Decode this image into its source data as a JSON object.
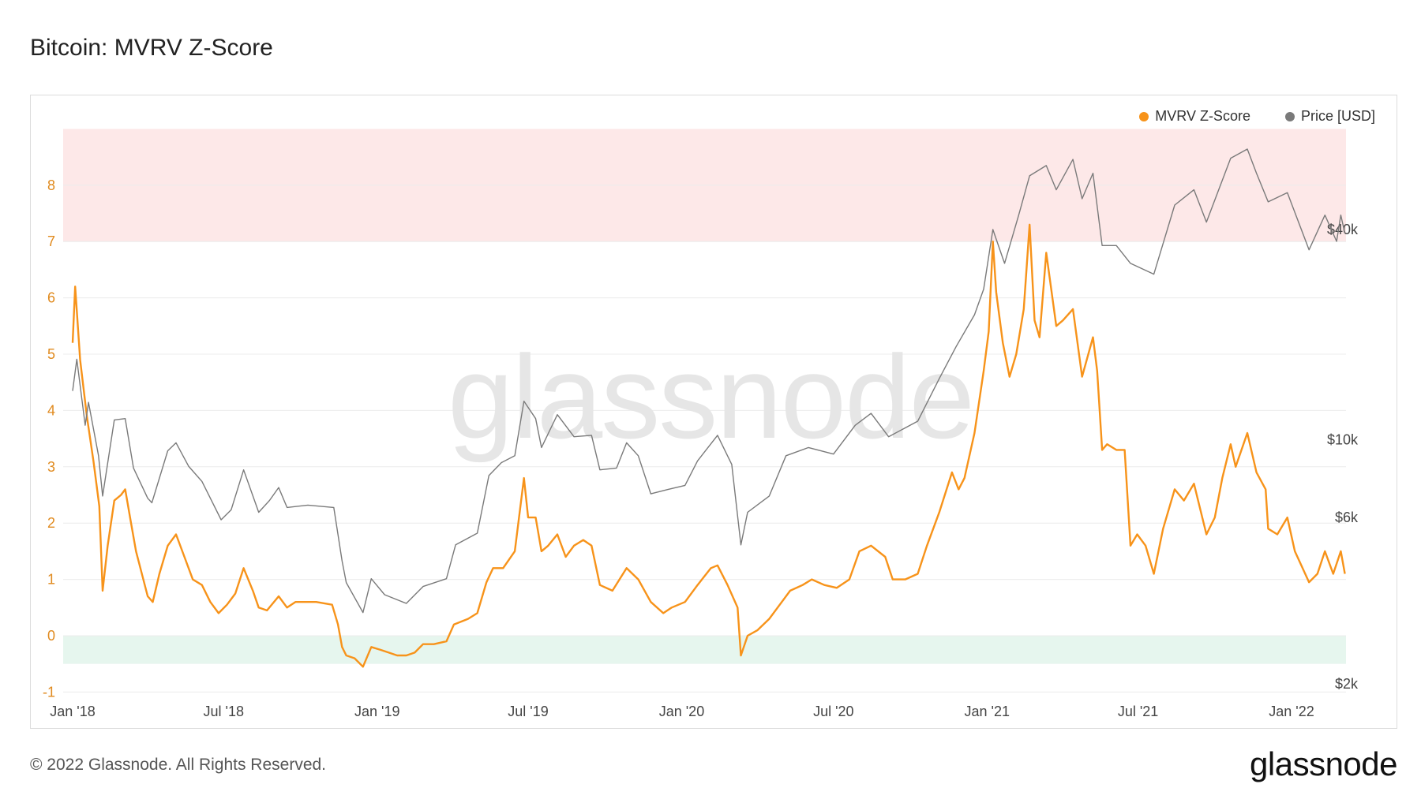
{
  "title": "Bitcoin: MVRV Z-Score",
  "footer": "© 2022 Glassnode. All Rights Reserved.",
  "brand": "glassnode",
  "watermark": "glassnode",
  "legend": [
    {
      "label": "MVRV Z-Score",
      "color": "#f7931a"
    },
    {
      "label": "Price [USD]",
      "color": "#7a7a7a"
    }
  ],
  "chart_data": {
    "type": "line",
    "x_ticks": [
      "Jan '18",
      "Jul '18",
      "Jan '19",
      "Jul '19",
      "Jan '20",
      "Jul '20",
      "Jan '21",
      "Jul '21",
      "Jan '22"
    ],
    "y_left_ticks": [
      "-1",
      "0",
      "1",
      "2",
      "3",
      "4",
      "5",
      "6",
      "7",
      "8"
    ],
    "y_right_ticks": [
      "$2k",
      "$6k",
      "$10k",
      "$40k"
    ],
    "y_left_range": [
      -1,
      9
    ],
    "y_right_scale": "log",
    "zones": [
      {
        "name": "red-zone",
        "from": 7,
        "to": 9,
        "color": "#fde8e8"
      },
      {
        "name": "green-zone",
        "from": -0.5,
        "to": 0,
        "color": "#e6f6ee"
      }
    ],
    "series": [
      {
        "name": "MVRV Z-Score",
        "color": "#f7931a",
        "axis": "left",
        "points": [
          [
            "2018-01-01",
            5.2
          ],
          [
            "2018-01-04",
            6.2
          ],
          [
            "2018-01-10",
            4.9
          ],
          [
            "2018-01-18",
            3.9
          ],
          [
            "2018-01-26",
            3.1
          ],
          [
            "2018-02-02",
            2.3
          ],
          [
            "2018-02-06",
            0.8
          ],
          [
            "2018-02-12",
            1.6
          ],
          [
            "2018-02-20",
            2.4
          ],
          [
            "2018-02-28",
            2.5
          ],
          [
            "2018-03-05",
            2.6
          ],
          [
            "2018-03-12",
            2.0
          ],
          [
            "2018-03-18",
            1.5
          ],
          [
            "2018-03-25",
            1.1
          ],
          [
            "2018-04-01",
            0.7
          ],
          [
            "2018-04-07",
            0.6
          ],
          [
            "2018-04-15",
            1.1
          ],
          [
            "2018-04-25",
            1.6
          ],
          [
            "2018-05-05",
            1.8
          ],
          [
            "2018-05-15",
            1.4
          ],
          [
            "2018-05-25",
            1.0
          ],
          [
            "2018-06-05",
            0.9
          ],
          [
            "2018-06-15",
            0.6
          ],
          [
            "2018-06-25",
            0.4
          ],
          [
            "2018-07-05",
            0.55
          ],
          [
            "2018-07-15",
            0.75
          ],
          [
            "2018-07-25",
            1.2
          ],
          [
            "2018-08-05",
            0.8
          ],
          [
            "2018-08-12",
            0.5
          ],
          [
            "2018-08-22",
            0.45
          ],
          [
            "2018-09-05",
            0.7
          ],
          [
            "2018-09-15",
            0.5
          ],
          [
            "2018-09-25",
            0.6
          ],
          [
            "2018-10-05",
            0.6
          ],
          [
            "2018-10-20",
            0.6
          ],
          [
            "2018-11-08",
            0.55
          ],
          [
            "2018-11-15",
            0.2
          ],
          [
            "2018-11-20",
            -0.2
          ],
          [
            "2018-11-25",
            -0.35
          ],
          [
            "2018-12-05",
            -0.4
          ],
          [
            "2018-12-15",
            -0.55
          ],
          [
            "2018-12-25",
            -0.2
          ],
          [
            "2019-01-05",
            -0.25
          ],
          [
            "2019-01-15",
            -0.3
          ],
          [
            "2019-01-25",
            -0.35
          ],
          [
            "2019-02-05",
            -0.35
          ],
          [
            "2019-02-15",
            -0.3
          ],
          [
            "2019-02-25",
            -0.15
          ],
          [
            "2019-03-10",
            -0.15
          ],
          [
            "2019-03-25",
            -0.1
          ],
          [
            "2019-04-03",
            0.2
          ],
          [
            "2019-04-20",
            0.3
          ],
          [
            "2019-05-01",
            0.4
          ],
          [
            "2019-05-12",
            0.95
          ],
          [
            "2019-05-20",
            1.2
          ],
          [
            "2019-06-01",
            1.2
          ],
          [
            "2019-06-15",
            1.5
          ],
          [
            "2019-06-26",
            2.8
          ],
          [
            "2019-07-01",
            2.1
          ],
          [
            "2019-07-10",
            2.1
          ],
          [
            "2019-07-17",
            1.5
          ],
          [
            "2019-07-25",
            1.6
          ],
          [
            "2019-08-05",
            1.8
          ],
          [
            "2019-08-15",
            1.4
          ],
          [
            "2019-08-25",
            1.6
          ],
          [
            "2019-09-05",
            1.7
          ],
          [
            "2019-09-15",
            1.6
          ],
          [
            "2019-09-25",
            0.9
          ],
          [
            "2019-10-10",
            0.8
          ],
          [
            "2019-10-27",
            1.2
          ],
          [
            "2019-11-10",
            1.0
          ],
          [
            "2019-11-25",
            0.6
          ],
          [
            "2019-12-10",
            0.4
          ],
          [
            "2019-12-20",
            0.5
          ],
          [
            "2020-01-05",
            0.6
          ],
          [
            "2020-01-20",
            0.9
          ],
          [
            "2020-02-05",
            1.2
          ],
          [
            "2020-02-13",
            1.25
          ],
          [
            "2020-02-25",
            0.9
          ],
          [
            "2020-03-08",
            0.5
          ],
          [
            "2020-03-12",
            -0.35
          ],
          [
            "2020-03-20",
            0.0
          ],
          [
            "2020-04-01",
            0.1
          ],
          [
            "2020-04-15",
            0.3
          ],
          [
            "2020-04-30",
            0.6
          ],
          [
            "2020-05-10",
            0.8
          ],
          [
            "2020-05-25",
            0.9
          ],
          [
            "2020-06-05",
            1.0
          ],
          [
            "2020-06-20",
            0.9
          ],
          [
            "2020-07-05",
            0.85
          ],
          [
            "2020-07-20",
            1.0
          ],
          [
            "2020-08-01",
            1.5
          ],
          [
            "2020-08-15",
            1.6
          ],
          [
            "2020-09-01",
            1.4
          ],
          [
            "2020-09-10",
            1.0
          ],
          [
            "2020-09-25",
            1.0
          ],
          [
            "2020-10-10",
            1.1
          ],
          [
            "2020-10-21",
            1.6
          ],
          [
            "2020-11-05",
            2.2
          ],
          [
            "2020-11-20",
            2.9
          ],
          [
            "2020-11-28",
            2.6
          ],
          [
            "2020-12-05",
            2.8
          ],
          [
            "2020-12-17",
            3.6
          ],
          [
            "2020-12-28",
            4.7
          ],
          [
            "2021-01-03",
            5.4
          ],
          [
            "2021-01-08",
            7.0
          ],
          [
            "2021-01-12",
            6.1
          ],
          [
            "2021-01-20",
            5.2
          ],
          [
            "2021-01-28",
            4.6
          ],
          [
            "2021-02-05",
            5.0
          ],
          [
            "2021-02-14",
            5.8
          ],
          [
            "2021-02-21",
            7.3
          ],
          [
            "2021-02-27",
            5.6
          ],
          [
            "2021-03-05",
            5.3
          ],
          [
            "2021-03-13",
            6.8
          ],
          [
            "2021-03-25",
            5.5
          ],
          [
            "2021-04-02",
            5.6
          ],
          [
            "2021-04-14",
            5.8
          ],
          [
            "2021-04-25",
            4.6
          ],
          [
            "2021-05-08",
            5.3
          ],
          [
            "2021-05-13",
            4.7
          ],
          [
            "2021-05-19",
            3.3
          ],
          [
            "2021-05-25",
            3.4
          ],
          [
            "2021-06-05",
            3.3
          ],
          [
            "2021-06-15",
            3.3
          ],
          [
            "2021-06-22",
            1.6
          ],
          [
            "2021-06-30",
            1.8
          ],
          [
            "2021-07-10",
            1.6
          ],
          [
            "2021-07-20",
            1.1
          ],
          [
            "2021-07-31",
            1.9
          ],
          [
            "2021-08-14",
            2.6
          ],
          [
            "2021-08-25",
            2.4
          ],
          [
            "2021-09-06",
            2.7
          ],
          [
            "2021-09-21",
            1.8
          ],
          [
            "2021-10-01",
            2.1
          ],
          [
            "2021-10-10",
            2.8
          ],
          [
            "2021-10-20",
            3.4
          ],
          [
            "2021-10-26",
            3.0
          ],
          [
            "2021-11-09",
            3.6
          ],
          [
            "2021-11-20",
            2.9
          ],
          [
            "2021-12-01",
            2.6
          ],
          [
            "2021-12-04",
            1.9
          ],
          [
            "2021-12-15",
            1.8
          ],
          [
            "2021-12-27",
            2.1
          ],
          [
            "2022-01-05",
            1.5
          ],
          [
            "2022-01-22",
            0.95
          ],
          [
            "2022-02-01",
            1.1
          ],
          [
            "2022-02-10",
            1.5
          ],
          [
            "2022-02-20",
            1.1
          ],
          [
            "2022-03-01",
            1.5
          ],
          [
            "2022-03-06",
            1.1
          ]
        ]
      },
      {
        "name": "Price [USD]",
        "color": "#7a7a7a",
        "axis": "right",
        "points": [
          [
            "2018-01-01",
            13800
          ],
          [
            "2018-01-06",
            17000
          ],
          [
            "2018-01-16",
            11000
          ],
          [
            "2018-01-20",
            12800
          ],
          [
            "2018-02-01",
            9000
          ],
          [
            "2018-02-06",
            6900
          ],
          [
            "2018-02-20",
            11400
          ],
          [
            "2018-03-05",
            11500
          ],
          [
            "2018-03-15",
            8300
          ],
          [
            "2018-04-01",
            6800
          ],
          [
            "2018-04-06",
            6600
          ],
          [
            "2018-04-25",
            9300
          ],
          [
            "2018-05-05",
            9800
          ],
          [
            "2018-05-20",
            8400
          ],
          [
            "2018-06-05",
            7600
          ],
          [
            "2018-06-28",
            5900
          ],
          [
            "2018-07-10",
            6300
          ],
          [
            "2018-07-25",
            8200
          ],
          [
            "2018-08-12",
            6200
          ],
          [
            "2018-08-25",
            6700
          ],
          [
            "2018-09-05",
            7300
          ],
          [
            "2018-09-15",
            6400
          ],
          [
            "2018-10-10",
            6500
          ],
          [
            "2018-11-10",
            6400
          ],
          [
            "2018-11-20",
            4500
          ],
          [
            "2018-11-25",
            3900
          ],
          [
            "2018-12-15",
            3200
          ],
          [
            "2018-12-25",
            4000
          ],
          [
            "2019-01-10",
            3600
          ],
          [
            "2019-02-05",
            3400
          ],
          [
            "2019-02-25",
            3800
          ],
          [
            "2019-03-25",
            4000
          ],
          [
            "2019-04-05",
            5000
          ],
          [
            "2019-05-01",
            5400
          ],
          [
            "2019-05-15",
            7900
          ],
          [
            "2019-05-30",
            8600
          ],
          [
            "2019-06-15",
            9000
          ],
          [
            "2019-06-26",
            12900
          ],
          [
            "2019-07-10",
            11500
          ],
          [
            "2019-07-17",
            9500
          ],
          [
            "2019-08-05",
            11800
          ],
          [
            "2019-08-25",
            10200
          ],
          [
            "2019-09-15",
            10300
          ],
          [
            "2019-09-25",
            8200
          ],
          [
            "2019-10-15",
            8300
          ],
          [
            "2019-10-27",
            9800
          ],
          [
            "2019-11-10",
            9000
          ],
          [
            "2019-11-25",
            7000
          ],
          [
            "2019-12-15",
            7200
          ],
          [
            "2020-01-05",
            7400
          ],
          [
            "2020-01-20",
            8700
          ],
          [
            "2020-02-13",
            10300
          ],
          [
            "2020-03-01",
            8500
          ],
          [
            "2020-03-12",
            5000
          ],
          [
            "2020-03-20",
            6200
          ],
          [
            "2020-04-15",
            6900
          ],
          [
            "2020-05-05",
            9000
          ],
          [
            "2020-06-01",
            9500
          ],
          [
            "2020-07-01",
            9100
          ],
          [
            "2020-07-27",
            11000
          ],
          [
            "2020-08-15",
            11900
          ],
          [
            "2020-09-05",
            10200
          ],
          [
            "2020-10-10",
            11300
          ],
          [
            "2020-11-05",
            15000
          ],
          [
            "2020-11-25",
            18500
          ],
          [
            "2020-12-17",
            22800
          ],
          [
            "2020-12-28",
            27000
          ],
          [
            "2021-01-08",
            40000
          ],
          [
            "2021-01-22",
            32000
          ],
          [
            "2021-02-08",
            44000
          ],
          [
            "2021-02-21",
            57000
          ],
          [
            "2021-03-13",
            61000
          ],
          [
            "2021-03-25",
            52000
          ],
          [
            "2021-04-14",
            63500
          ],
          [
            "2021-04-25",
            49000
          ],
          [
            "2021-05-08",
            58000
          ],
          [
            "2021-05-19",
            36000
          ],
          [
            "2021-06-05",
            36000
          ],
          [
            "2021-06-22",
            32000
          ],
          [
            "2021-07-20",
            29800
          ],
          [
            "2021-08-14",
            47000
          ],
          [
            "2021-09-06",
            52000
          ],
          [
            "2021-09-21",
            42000
          ],
          [
            "2021-10-20",
            64000
          ],
          [
            "2021-11-09",
            68000
          ],
          [
            "2021-11-20",
            58000
          ],
          [
            "2021-12-04",
            48000
          ],
          [
            "2021-12-27",
            51000
          ],
          [
            "2022-01-22",
            35000
          ],
          [
            "2022-02-10",
            44000
          ],
          [
            "2022-02-24",
            37000
          ],
          [
            "2022-03-01",
            44000
          ],
          [
            "2022-03-06",
            39000
          ]
        ]
      }
    ]
  }
}
